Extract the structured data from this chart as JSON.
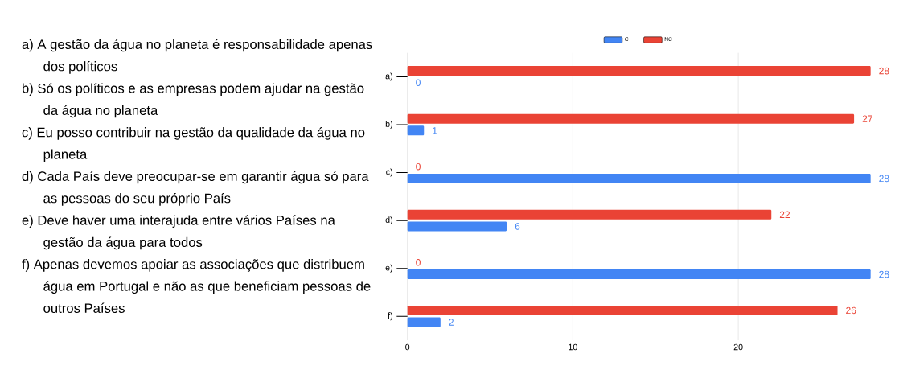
{
  "chart_data": {
    "type": "bar",
    "orientation": "horizontal",
    "categories": [
      "a)",
      "b)",
      "c)",
      "d)",
      "e)",
      "f)"
    ],
    "series": [
      {
        "name": "C",
        "color": "#4285f4",
        "values": [
          0,
          1,
          28,
          6,
          28,
          2
        ]
      },
      {
        "name": "NC",
        "color": "#ea4335",
        "values": [
          28,
          27,
          0,
          22,
          0,
          26
        ]
      }
    ],
    "xlim": [
      0,
      28
    ],
    "xticks": [
      0,
      10,
      20
    ],
    "grid": "x",
    "legend": "top",
    "data_labels": true,
    "annotations": [
      "a) A gestão da água no planeta é responsabilidade apenas dos políticos",
      "b) Só os políticos e as empresas podem ajudar na gestão da água no planeta",
      "c) Eu posso contribuir na gestão da qualidade da água no planeta",
      "d) Cada País deve preocupar-se em garantir água só para as pessoas do seu próprio País",
      "e) Deve haver uma interajuda entre vários Países na gestão da água para todos",
      "f) Apenas devemos apoiar as associações que distribuem água em Portugal e não as que beneficiam pessoas de outros Países"
    ]
  }
}
